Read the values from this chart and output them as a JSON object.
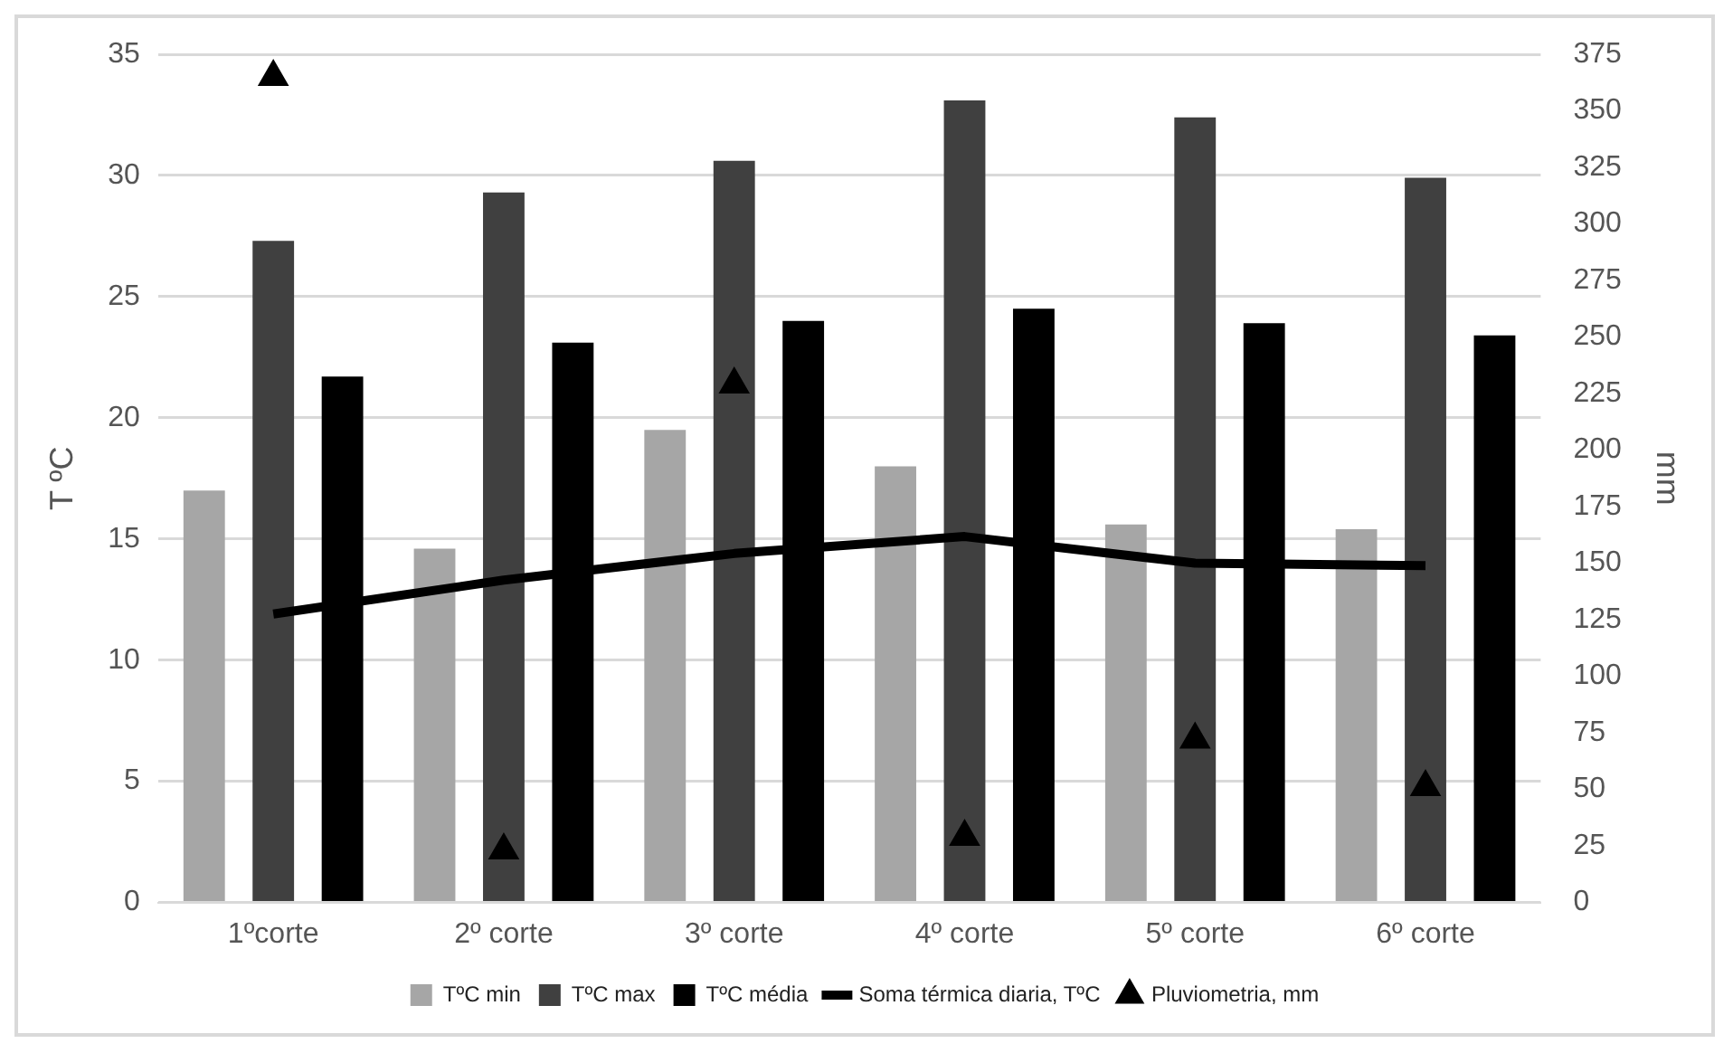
{
  "chart_data": {
    "type": "bar",
    "ylabel": "T ºC",
    "y2label": "mm",
    "categories": [
      "1ºcorte",
      "2º corte",
      "3º corte",
      "4º corte",
      "5º corte",
      "6º corte"
    ],
    "series": [
      {
        "name": "TºC min",
        "color": "#a6a6a6",
        "values": [
          17,
          14.6,
          19.5,
          18,
          15.6,
          15.4
        ]
      },
      {
        "name": "TºC max",
        "color": "#404040",
        "values": [
          27.3,
          29.3,
          30.6,
          33.1,
          32.4,
          29.9
        ]
      },
      {
        "name": "TºC média",
        "color": "#000000",
        "values": [
          21.7,
          23.1,
          24,
          24.5,
          23.9,
          23.4
        ]
      },
      {
        "name": "Soma térmica diaria, TºC",
        "type": "line",
        "color": "#000000",
        "values": [
          11.9,
          13.3,
          14.4,
          15.1,
          14,
          13.9
        ]
      },
      {
        "name": "Pluviometria, mm",
        "type": "scatter",
        "axis": "y2",
        "marker": "triangle",
        "color": "#000000",
        "values": [
          365,
          23,
          229,
          29,
          72,
          51
        ]
      }
    ],
    "ylim": [
      0,
      35
    ],
    "yticks": [
      0,
      5,
      10,
      15,
      20,
      25,
      30,
      35
    ],
    "y2lim": [
      0,
      375
    ],
    "y2ticks": [
      0,
      25,
      50,
      75,
      100,
      125,
      150,
      175,
      200,
      225,
      250,
      275,
      300,
      325,
      350,
      375
    ],
    "grid": "y",
    "legend": "bottom"
  }
}
